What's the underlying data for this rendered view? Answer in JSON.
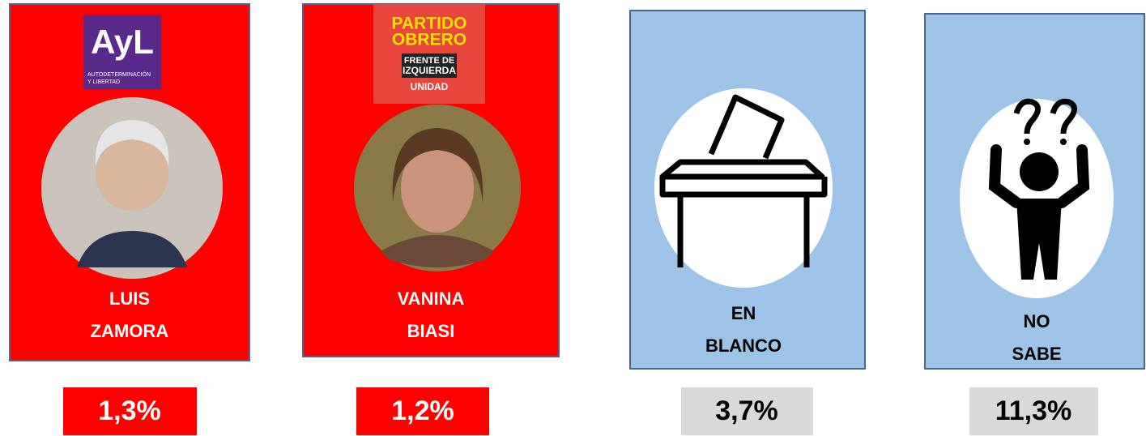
{
  "cards": [
    {
      "logo": [
        "AyL",
        "AUTODETERMINACIÓN",
        "Y LIBERTAD"
      ],
      "name": [
        "LUIS",
        "ZAMORA"
      ],
      "result": "1,3%"
    },
    {
      "logo": [
        "PARTIDO",
        "OBRERO",
        "FRENTE DE",
        "IZQUIERDA",
        "UNIDAD"
      ],
      "name": [
        "VANINA",
        "BIASI"
      ],
      "result": "1,2%"
    },
    {
      "name": [
        "EN",
        "BLANCO"
      ],
      "result": "3,7%"
    },
    {
      "name": [
        "NO",
        "SABE"
      ],
      "result": "11,3%"
    }
  ]
}
